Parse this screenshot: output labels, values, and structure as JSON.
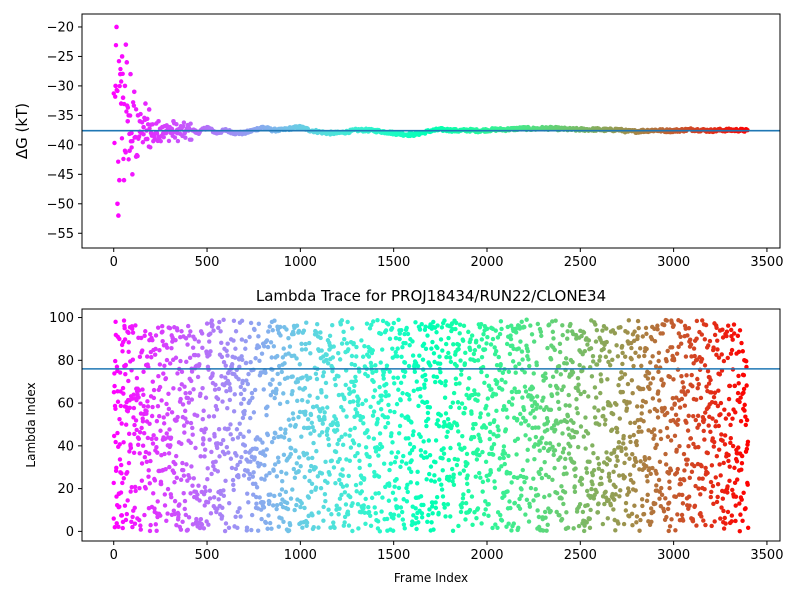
{
  "chart_data": [
    {
      "type": "scatter",
      "title": "",
      "xlabel": "",
      "ylabel": "ΔG (kT)",
      "xlim": [
        -170,
        3570
      ],
      "ylim": [
        -57.5,
        -17.8
      ],
      "xticks": [
        0,
        500,
        1000,
        1500,
        2000,
        2500,
        3000,
        3500
      ],
      "yticks": [
        -55,
        -50,
        -45,
        -40,
        -35,
        -30,
        -25,
        -20
      ],
      "hline": -37.6,
      "hline_color": "#1f77b4",
      "colormap": "rainbow",
      "n_frames": 3400,
      "series": [
        {
          "description": "Free energy estimate per frame, colored by frame index",
          "x": [
            10,
            15,
            20,
            25,
            30,
            35,
            40,
            45,
            50,
            55,
            60,
            65,
            70,
            75,
            80,
            85,
            90,
            95,
            100,
            110,
            120,
            130,
            140,
            150,
            160,
            170,
            180,
            190,
            200,
            220,
            240,
            260,
            280,
            300,
            320,
            340,
            360,
            380,
            400,
            450,
            500,
            550,
            600,
            650,
            700,
            750,
            800,
            850,
            900,
            950,
            1000,
            1050,
            1100,
            1150,
            1200,
            1250,
            1300,
            1350,
            1400,
            1450,
            1500,
            1550,
            1600,
            1650,
            1700,
            1750,
            1800,
            1850,
            1900,
            1950,
            2000,
            2050,
            2100,
            2150,
            2200,
            2250,
            2300,
            2350,
            2400,
            2450,
            2500,
            2550,
            2600,
            2650,
            2700,
            2750,
            2800,
            2850,
            2900,
            2950,
            3000,
            3050,
            3100,
            3150,
            3200,
            3250,
            3300,
            3350,
            3400
          ],
          "y": [
            -30,
            -20,
            -50,
            -52,
            -46,
            -28,
            -33,
            -25,
            -32,
            -46,
            -30,
            -23,
            -26,
            -36,
            -35,
            -41,
            -28,
            -38,
            -45,
            -31,
            -42,
            -35,
            -36,
            -38,
            -37,
            -33,
            -39,
            -34,
            -38,
            -39,
            -36,
            -37,
            -38,
            -37,
            -36,
            -38,
            -37,
            -38,
            -37,
            -38,
            -37,
            -38,
            -37.5,
            -38,
            -38,
            -37.5,
            -37,
            -37.5,
            -37.5,
            -37.2,
            -37,
            -37.5,
            -37.8,
            -38,
            -38,
            -37.8,
            -37.5,
            -37.5,
            -37.6,
            -37.8,
            -38,
            -38.2,
            -38.3,
            -38,
            -37.6,
            -37.4,
            -37.5,
            -37.6,
            -37.5,
            -37.6,
            -37.5,
            -37.4,
            -37.4,
            -37.3,
            -37.2,
            -37.3,
            -37.2,
            -37.2,
            -37.3,
            -37.4,
            -37.4,
            -37.4,
            -37.4,
            -37.5,
            -37.4,
            -37.7,
            -37.7,
            -37.6,
            -37.5,
            -37.6,
            -37.6,
            -37.5,
            -37.4,
            -37.5,
            -37.6,
            -37.5,
            -37.5,
            -37.5,
            -37.6
          ]
        }
      ]
    },
    {
      "type": "scatter",
      "title": "Lambda Trace for PROJ18434/RUN22/CLONE34",
      "xlabel": "Frame Index",
      "ylabel": "Lambda Index",
      "xlim": [
        -170,
        3570
      ],
      "ylim": [
        -4.5,
        104
      ],
      "xticks": [
        0,
        500,
        1000,
        1500,
        2000,
        2500,
        3000,
        3500
      ],
      "yticks": [
        0,
        20,
        40,
        60,
        80,
        100
      ],
      "hline": 76,
      "hline_color": "#1f77b4",
      "colormap": "rainbow",
      "n_frames": 3400,
      "value_range": [
        0,
        99
      ],
      "series": [
        {
          "description": "Lambda index visited at each frame, colored by frame index; values roughly uniform over 0-99",
          "sample_x": [
            0,
            10,
            20,
            30,
            40,
            50,
            60,
            70,
            80,
            90,
            100
          ],
          "sample_y": [
            6,
            98,
            46,
            90,
            31,
            67,
            12,
            58,
            84,
            40,
            2
          ]
        }
      ]
    }
  ]
}
